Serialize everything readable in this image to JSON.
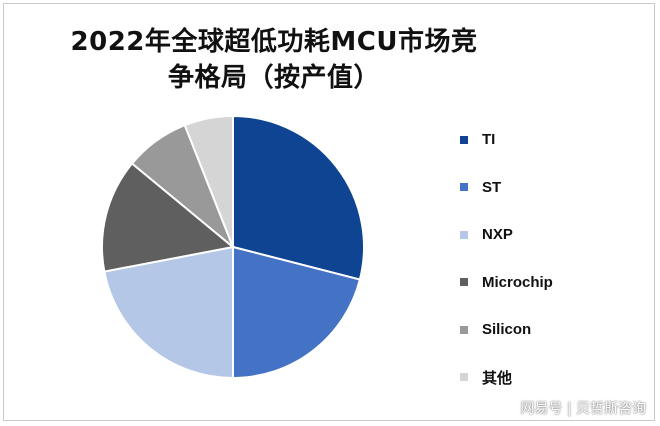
{
  "chart_data": {
    "type": "pie",
    "title": "2022年全球超低功耗MCU市场竞争格局（按产值）",
    "categories": [
      "TI",
      "ST",
      "NXP",
      "Microchip",
      "Silicon",
      "其他"
    ],
    "values": [
      29,
      21,
      22,
      14,
      8,
      6
    ],
    "colors": [
      "#0e4492",
      "#4472c4",
      "#b4c7e7",
      "#5f5f5f",
      "#999999",
      "#d5d5d5"
    ],
    "legend_position": "right",
    "start_angle": "top, clockwise"
  },
  "watermark": {
    "text": "网易号 | 贝哲斯咨询"
  }
}
